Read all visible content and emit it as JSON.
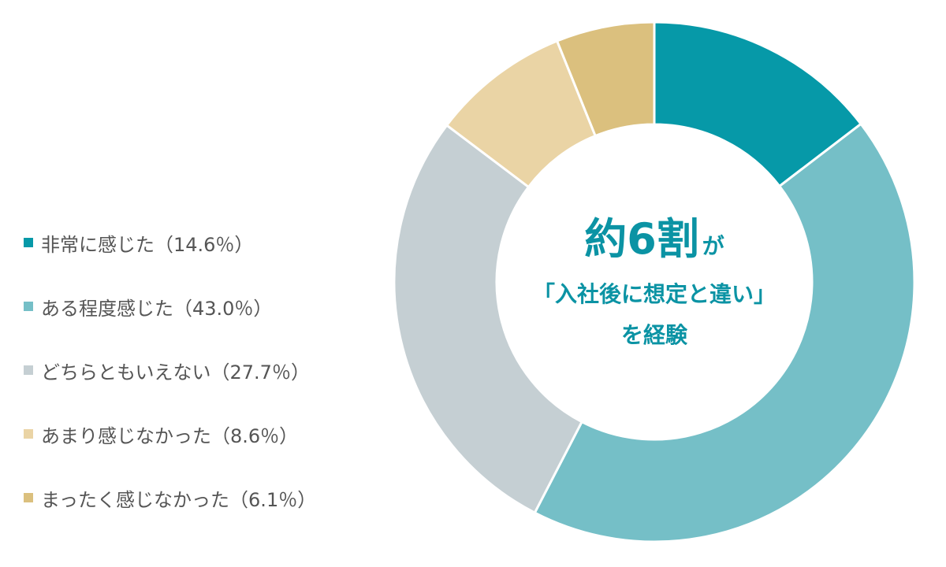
{
  "chart_data": {
    "type": "pie",
    "variant": "donut",
    "start_angle_deg": 0,
    "direction": "clockwise",
    "categories": [
      "非常に感じた（14.6％）",
      "ある程度感じた（43.0％）",
      "どちらともいえない（27.7％）",
      "あまり感じなかった（8.6％）",
      "まったく感じなかった（6.1％）"
    ],
    "values": [
      14.6,
      43.0,
      27.7,
      8.6,
      6.1
    ],
    "colors": [
      "#0699a8",
      "#75bfc7",
      "#c5cfd3",
      "#ead4a5",
      "#dbc07e"
    ],
    "legend_position": "left",
    "center_label": {
      "headline_main": "約6割",
      "headline_suffix": "が",
      "line2": "「入社後に想定と違い」",
      "line3": "を経験"
    }
  },
  "colors": {
    "accent": "#0b93a4",
    "legend_text": "#555555",
    "background": "#ffffff"
  }
}
